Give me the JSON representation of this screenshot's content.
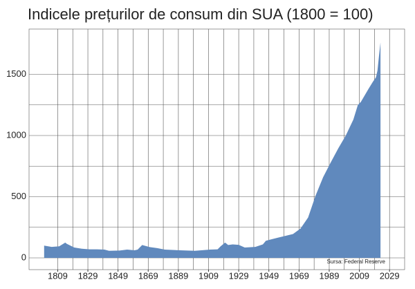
{
  "chart_data": {
    "type": "area",
    "title": "Indicele prețurilor de consum din SUA (1800 = 100)",
    "annotation": "Sursa: Federal Reserve",
    "color": "#6089bd",
    "x": [
      1800,
      1805,
      1810,
      1814,
      1815,
      1820,
      1825,
      1830,
      1835,
      1840,
      1843,
      1850,
      1855,
      1860,
      1862,
      1865,
      1870,
      1875,
      1880,
      1890,
      1900,
      1910,
      1915,
      1917,
      1920,
      1922,
      1925,
      1929,
      1933,
      1940,
      1945,
      1947,
      1950,
      1955,
      1960,
      1965,
      1970,
      1975,
      1980,
      1985,
      1990,
      1995,
      2000,
      2005,
      2008,
      2010,
      2015,
      2018,
      2020,
      2021,
      2022,
      2023
    ],
    "values": [
      100,
      90,
      95,
      125,
      115,
      85,
      75,
      70,
      70,
      68,
      58,
      60,
      68,
      62,
      68,
      105,
      88,
      80,
      68,
      62,
      58,
      68,
      70,
      95,
      125,
      105,
      110,
      107,
      85,
      90,
      110,
      140,
      150,
      165,
      180,
      195,
      240,
      330,
      510,
      660,
      780,
      895,
      1000,
      1130,
      1250,
      1275,
      1380,
      1440,
      1475,
      1530,
      1650,
      1760
    ],
    "xlim": [
      1790,
      2039
    ],
    "xticks": [
      1809,
      1829,
      1849,
      1869,
      1889,
      1909,
      1929,
      1949,
      1969,
      1989,
      2009,
      2029
    ],
    "ylim": [
      -96,
      1870
    ],
    "yticks": [
      0,
      500,
      1000,
      1500
    ],
    "grid": true
  }
}
